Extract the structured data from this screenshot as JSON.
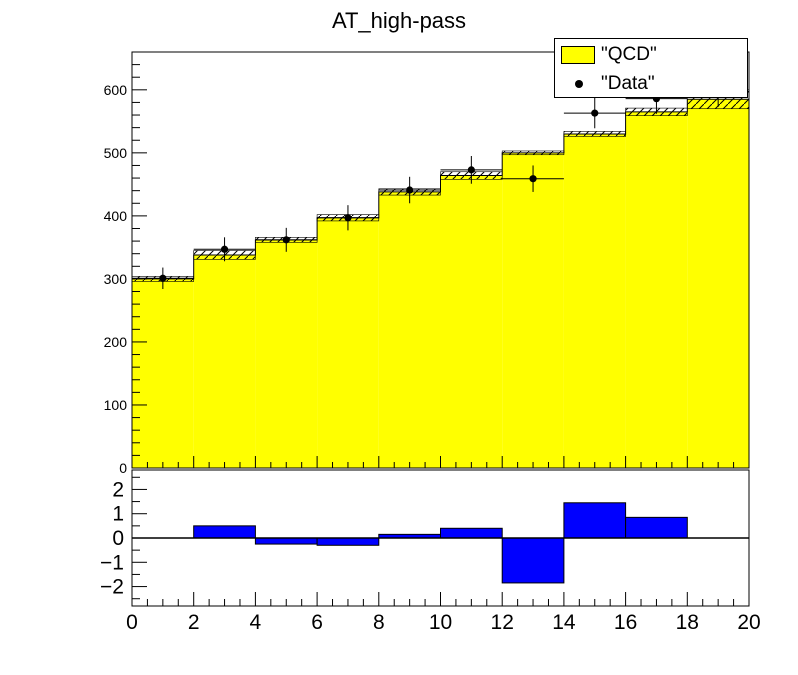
{
  "title": "AT_high-pass",
  "legend": {
    "entries": [
      {
        "label": "\"QCD\"",
        "color": "#ffff00"
      },
      {
        "label": "\"Data\"",
        "color": "#000000"
      }
    ]
  },
  "chart_data": [
    {
      "type": "histogram",
      "panel": "main",
      "xlim": [
        0,
        20
      ],
      "ylim": [
        0,
        660
      ],
      "yticks": [
        0,
        100,
        200,
        300,
        400,
        500,
        600
      ],
      "bin_edges": [
        0,
        2,
        4,
        6,
        8,
        10,
        12,
        14,
        16,
        18,
        20
      ],
      "series": [
        {
          "name": "\"QCD\"",
          "kind": "filled-histogram",
          "color": "#ffff00",
          "values": [
            300,
            338,
            362,
            397,
            438,
            464,
            500,
            530,
            565,
            585
          ],
          "uncertainty": [
            4,
            7,
            4,
            5,
            5,
            6,
            3,
            4,
            6,
            15
          ]
        },
        {
          "name": "\"Data\"",
          "kind": "points-with-errors",
          "color": "#000000",
          "x": [
            1,
            3,
            5,
            7,
            9,
            11,
            13,
            15,
            17,
            19
          ],
          "values": [
            301,
            347,
            362,
            397,
            441,
            473,
            459,
            563,
            586,
            597
          ],
          "errors": [
            17,
            19,
            19,
            20,
            21,
            22,
            21,
            24,
            24,
            24
          ]
        }
      ]
    },
    {
      "type": "bar",
      "panel": "ratio",
      "xlim": [
        0,
        20
      ],
      "ylim": [
        -2.8,
        2.8
      ],
      "yticks": [
        -2,
        -1,
        0,
        1,
        2
      ],
      "yticklabels": [
        "−2",
        "−1",
        "0",
        "1",
        "2"
      ],
      "xticks": [
        0,
        2,
        4,
        6,
        8,
        10,
        12,
        14,
        16,
        18,
        20
      ],
      "xticklabels": [
        "0",
        "2",
        "4",
        "6",
        "8",
        "10",
        "12",
        "14",
        "16",
        "18",
        "20"
      ],
      "bin_edges": [
        0,
        2,
        4,
        6,
        8,
        10,
        12,
        14,
        16,
        18,
        20
      ],
      "values": [
        0.0,
        0.5,
        -0.25,
        -0.3,
        0.15,
        0.4,
        -1.85,
        1.45,
        0.85,
        0.0
      ],
      "color": "#0000ff"
    }
  ]
}
